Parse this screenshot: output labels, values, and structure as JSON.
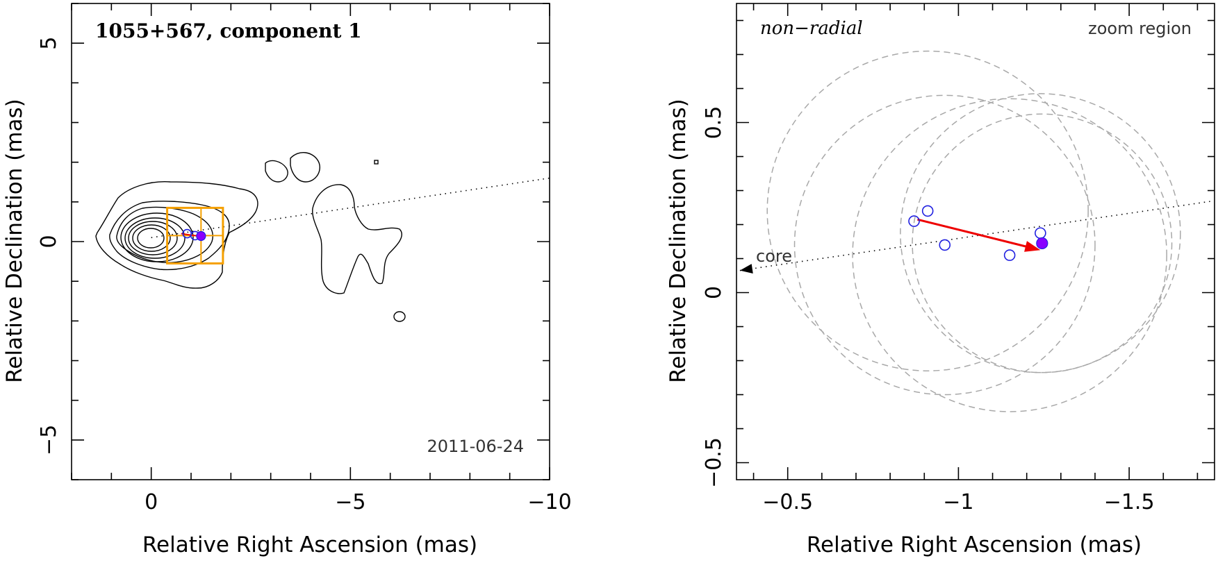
{
  "colors": {
    "axis": "#000000",
    "contour": "#000000",
    "box": "#f5a000",
    "component_open": "#2020e0",
    "component_filled": "#8800ff",
    "arrow": "#ee0000",
    "circle": "#a8a8a8",
    "dotted": "#000000"
  },
  "chart_data": [
    {
      "type": "contour",
      "title": "1055+567, component 1",
      "date_label": "2011-06-24",
      "xlabel": "Relative Right Ascension (mas)",
      "ylabel": "Relative Declination (mas)",
      "xlim": [
        2,
        -10
      ],
      "ylim": [
        -6,
        6
      ],
      "xticks": [
        0,
        -5,
        -10
      ],
      "yticks": [
        5,
        0,
        -5
      ],
      "xtick_labels": [
        "0",
        "−5",
        "−10"
      ],
      "ytick_labels": [
        "5",
        "0",
        "−5"
      ],
      "contour_peak": [
        0,
        0.1
      ],
      "jet_axis": {
        "from": [
          0,
          0.1
        ],
        "to": [
          -10,
          1.6
        ]
      },
      "zoom_box": {
        "x": [
          -0.4,
          -1.8
        ],
        "y": [
          -0.55,
          0.85
        ],
        "cross": [
          -1.25,
          0.15
        ]
      },
      "components_open": [
        [
          -0.9,
          0.2
        ],
        [
          -1.1,
          0.15
        ]
      ],
      "component_filled": [
        -1.25,
        0.14
      ]
    },
    {
      "type": "scatter",
      "title": "non−radial",
      "corner_label": "zoom region",
      "core_label": "core",
      "xlabel": "Relative Right Ascension (mas)",
      "ylabel": "Relative Declination (mas)",
      "xlim": [
        -0.35,
        -1.75
      ],
      "ylim": [
        -0.55,
        0.85
      ],
      "xticks": [
        -0.5,
        -1,
        -1.5
      ],
      "yticks": [
        0.5,
        0,
        -0.5
      ],
      "xtick_labels": [
        "−0.5",
        "−1",
        "−1.5"
      ],
      "ytick_labels": [
        "0.5",
        "0",
        "−0.5"
      ],
      "x_minor_step": 0.1,
      "y_minor_step": 0.1,
      "open_points": [
        {
          "x": -0.87,
          "y": 0.21
        },
        {
          "x": -0.91,
          "y": 0.24
        },
        {
          "x": -0.96,
          "y": 0.14
        },
        {
          "x": -1.15,
          "y": 0.11
        },
        {
          "x": -1.24,
          "y": 0.175
        }
      ],
      "filled_point": {
        "x": -1.245,
        "y": 0.145
      },
      "motion_arrow": {
        "x0": -0.88,
        "y0": 0.215,
        "x1": -1.24,
        "y1": 0.125
      },
      "jet_axis": {
        "x0": -0.36,
        "y0": 0.065,
        "x1": -1.75,
        "y1": 0.27
      },
      "uncertainty_circles": [
        {
          "x": -0.91,
          "y": 0.24,
          "r": 0.47
        },
        {
          "x": -0.96,
          "y": 0.14,
          "r": 0.44
        },
        {
          "x": -1.15,
          "y": 0.11,
          "r": 0.46
        },
        {
          "x": -1.24,
          "y": 0.175,
          "r": 0.41
        },
        {
          "x": -1.245,
          "y": 0.145,
          "r": 0.38
        }
      ]
    }
  ]
}
